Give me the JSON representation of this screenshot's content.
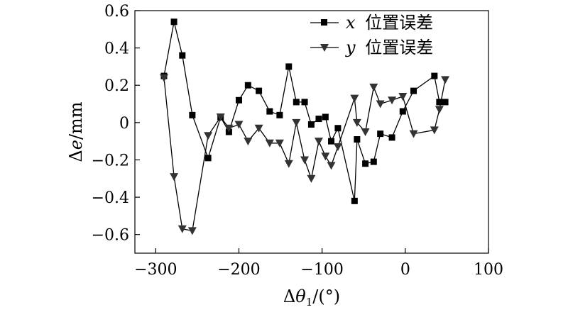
{
  "chart_data": {
    "type": "line",
    "title": "",
    "xlabel": "Δθ1/(°)",
    "xlabel_parts": {
      "base": "Δ",
      "symbol": "θ",
      "subscript": "1",
      "unit": "/(°)"
    },
    "ylabel": "Δe/mm",
    "ylabel_parts": {
      "base": "Δ",
      "symbol": "e",
      "unit": "/mm"
    },
    "xlim": [
      -325,
      100
    ],
    "ylim": [
      -0.7,
      0.6
    ],
    "x_ticks": [
      -300,
      -200,
      -100,
      0,
      100
    ],
    "x_tick_labels": [
      "−300",
      "−200",
      "−100",
      "0",
      "100"
    ],
    "y_ticks": [
      -0.6,
      -0.4,
      -0.2,
      0,
      0.2,
      0.4,
      0.6
    ],
    "y_tick_labels": [
      "−0.6",
      "−0.4",
      "−0.2",
      "0",
      "0.2",
      "0.4",
      "0.6"
    ],
    "grid": false,
    "legend_position": "top-right",
    "series": [
      {
        "name": "x 位置误差",
        "name_var": "x",
        "name_text": "位置误差",
        "marker": "square",
        "color": "#000000",
        "points": [
          [
            -290,
            0.25
          ],
          [
            -278,
            0.54
          ],
          [
            -268,
            0.36
          ],
          [
            -256,
            0.04
          ],
          [
            -237,
            -0.19
          ],
          [
            -222,
            0.03
          ],
          [
            -212,
            -0.05
          ],
          [
            -200,
            0.12
          ],
          [
            -189,
            0.2
          ],
          [
            -176,
            0.17
          ],
          [
            -163,
            0.06
          ],
          [
            -151,
            0.04
          ],
          [
            -140,
            0.3
          ],
          [
            -131,
            0.11
          ],
          [
            -121,
            0.11
          ],
          [
            -113,
            -0.01
          ],
          [
            -104,
            0.02
          ],
          [
            -96,
            0.03
          ],
          [
            -89,
            -0.1
          ],
          [
            -81,
            -0.03
          ],
          [
            -61,
            -0.42
          ],
          [
            -58,
            -0.09
          ],
          [
            -48,
            -0.22
          ],
          [
            -38,
            -0.21
          ],
          [
            -30,
            -0.06
          ],
          [
            -16,
            -0.08
          ],
          [
            -3,
            0.06
          ],
          [
            10,
            0.17
          ],
          [
            35,
            0.25
          ],
          [
            41,
            0.11
          ],
          [
            48,
            0.11
          ]
        ]
      },
      {
        "name": "y 位置误差",
        "name_var": "y",
        "name_text": "位置误差",
        "marker": "triangle-down",
        "color": "#000000",
        "points": [
          [
            -290,
            0.24
          ],
          [
            -278,
            -0.29
          ],
          [
            -268,
            -0.57
          ],
          [
            -256,
            -0.58
          ],
          [
            -237,
            -0.07
          ],
          [
            -222,
            0.03
          ],
          [
            -212,
            -0.03
          ],
          [
            -200,
            -0.01
          ],
          [
            -189,
            -0.1
          ],
          [
            -176,
            -0.03
          ],
          [
            -163,
            -0.11
          ],
          [
            -151,
            -0.11
          ],
          [
            -140,
            -0.22
          ],
          [
            -131,
            0.0
          ],
          [
            -121,
            -0.2
          ],
          [
            -113,
            -0.3
          ],
          [
            -104,
            -0.1
          ],
          [
            -96,
            -0.18
          ],
          [
            -89,
            -0.23
          ],
          [
            -81,
            -0.13
          ],
          [
            -61,
            0.13
          ],
          [
            -58,
            0.0
          ],
          [
            -48,
            -0.05
          ],
          [
            -38,
            0.19
          ],
          [
            -30,
            0.1
          ],
          [
            -16,
            0.12
          ],
          [
            -3,
            0.14
          ],
          [
            10,
            -0.06
          ],
          [
            35,
            -0.04
          ],
          [
            41,
            0.07
          ],
          [
            48,
            0.23
          ]
        ]
      }
    ]
  }
}
